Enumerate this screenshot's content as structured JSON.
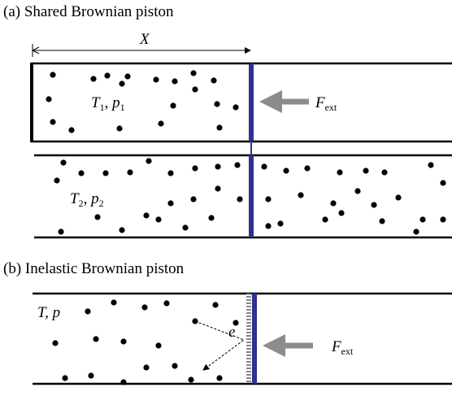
{
  "panels": [
    {
      "title": "(a) Shared Brownian piston",
      "length_label": "X",
      "chambers": [
        {
          "label": [
            {
              "main": "T",
              "sub": "1"
            },
            {
              "main": ", "
            },
            {
              "main": "p",
              "sub": "1"
            }
          ]
        },
        {
          "label": [
            {
              "main": "T",
              "sub": "2"
            },
            {
              "main": ", "
            },
            {
              "main": "p",
              "sub": "2"
            }
          ]
        }
      ],
      "force": {
        "main": "F",
        "sub": "ext"
      }
    },
    {
      "title": "(b) Inelastic Brownian piston",
      "chambers": [
        {
          "label": [
            {
              "main": "T, p"
            }
          ]
        }
      ],
      "restitution": "e",
      "force": {
        "main": "F",
        "sub": "ext"
      }
    }
  ]
}
